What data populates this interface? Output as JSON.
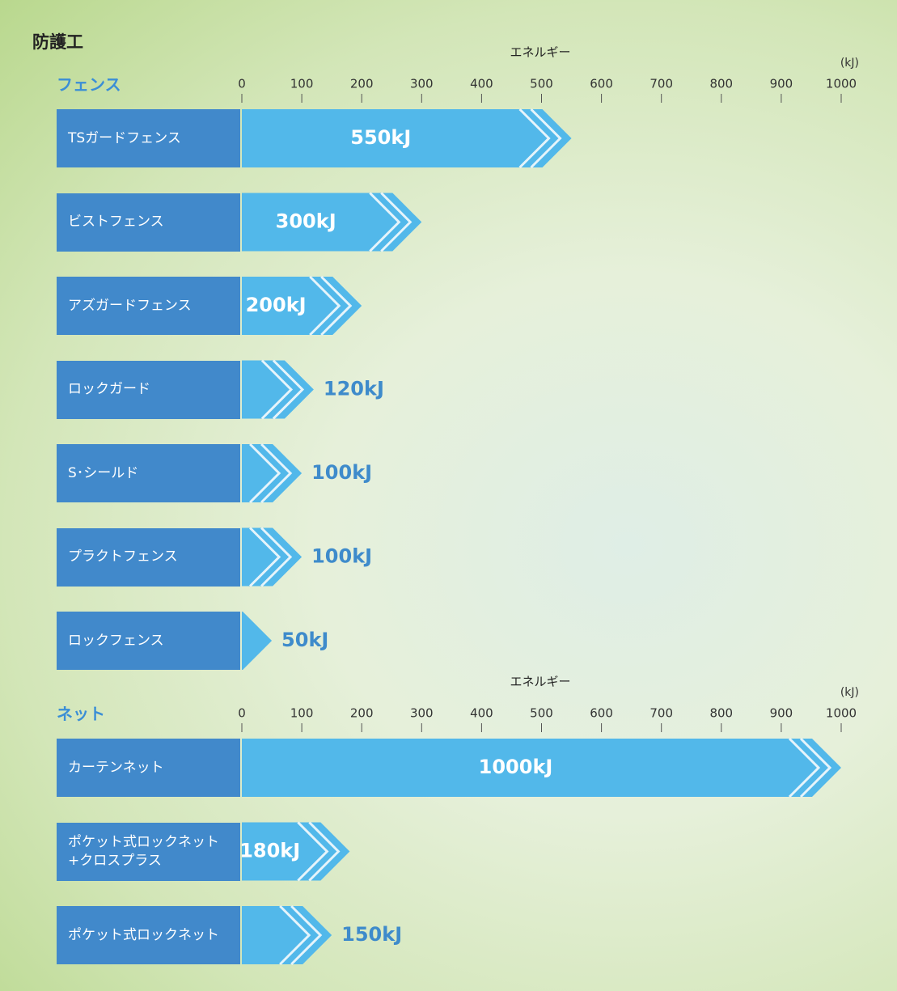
{
  "title": "防護工",
  "chart_data": [
    {
      "type": "bar",
      "title": "フェンス",
      "xlabel": "エネルギー",
      "unit": "(kJ)",
      "categories": [
        "TSガードフェンス",
        "ビストフェンス",
        "アズガードフェンス",
        "ロックガード",
        "S･シールド",
        "プラクトフェンス",
        "ロックフェンス"
      ],
      "values": [
        550,
        300,
        200,
        120,
        100,
        100,
        50
      ],
      "value_labels": [
        "550kJ",
        "300kJ",
        "200kJ",
        "120kJ",
        "100kJ",
        "100kJ",
        "50kJ"
      ],
      "xlim": [
        0,
        1000
      ],
      "xticks": [
        0,
        100,
        200,
        300,
        400,
        500,
        600,
        700,
        800,
        900,
        1000
      ],
      "color": "#52b8ea",
      "label_color": "#3e8bcb"
    },
    {
      "type": "bar",
      "title": "ネット",
      "xlabel": "エネルギー",
      "unit": "(kJ)",
      "categories": [
        "カーテンネット",
        "ポケット式ロックネット\n+クロスプラス",
        "ポケット式ロックネット"
      ],
      "values": [
        1000,
        180,
        150
      ],
      "value_labels": [
        "1000kJ",
        "180kJ",
        "150kJ"
      ],
      "xlim": [
        0,
        1000
      ],
      "xticks": [
        0,
        100,
        200,
        300,
        400,
        500,
        600,
        700,
        800,
        900,
        1000
      ],
      "color": "#52b8ea",
      "label_color": "#3e8bcb"
    }
  ]
}
